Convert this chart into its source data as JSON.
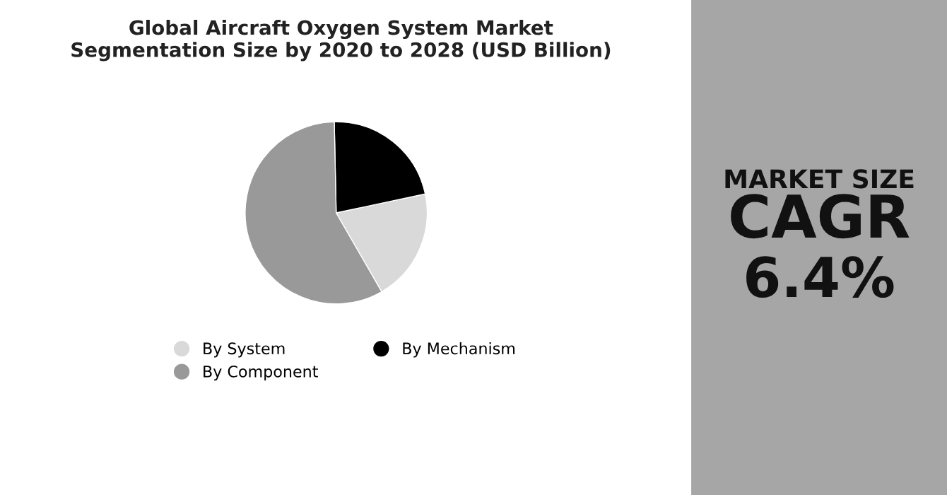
{
  "chart_data": [
    {
      "type": "pie",
      "title": "Global Aircraft Oxygen System Market\nSegmentation Size by 2020 to 2028 (USD Billion)",
      "categories": [
        "By System",
        "By Mechanism",
        "By Component"
      ],
      "values": [
        20,
        22,
        58
      ],
      "colors": [
        "#d9d9d9",
        "#000000",
        "#999999"
      ],
      "legend": "bottom"
    },
    {
      "type": "other",
      "title": "MARKET SIZE",
      "annotations": [
        "CAGR",
        "6.4%"
      ]
    }
  ]
}
